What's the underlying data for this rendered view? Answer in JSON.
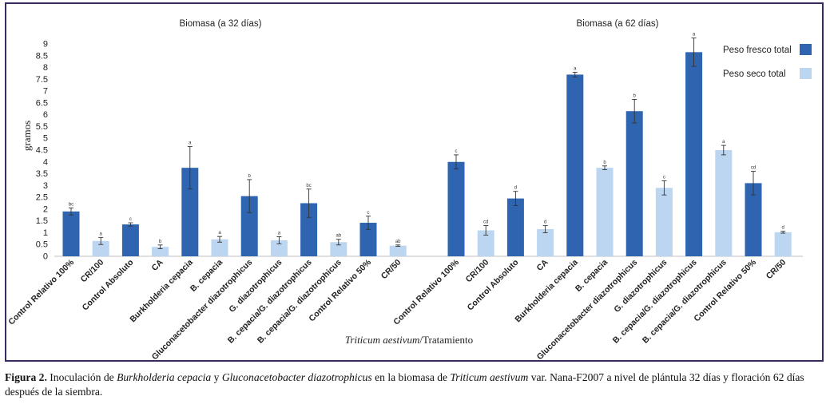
{
  "chart_data": {
    "type": "bar",
    "panels": [
      {
        "title": "Biomasa (a 32 días)",
        "categories": [
          "Control Relativo 100%",
          "CR/100",
          "Control Absoluto",
          "CA",
          "Burkholderia cepacia",
          "B. cepacia",
          "Gluconacetobacter diazotrophicus",
          "G. diazotrophicus",
          "B. cepacia/G. diazotrophicus",
          "B. cepacia/G. diazotrophicus",
          "Control Relativo 50%",
          "CR/50"
        ],
        "values": [
          1.9,
          0.65,
          1.35,
          0.4,
          3.75,
          0.72,
          2.55,
          0.68,
          2.25,
          0.6,
          1.42,
          0.45
        ],
        "errors": [
          0.15,
          0.15,
          0.07,
          0.08,
          0.9,
          0.12,
          0.7,
          0.15,
          0.6,
          0.12,
          0.28,
          0.03
        ],
        "series": [
          "Peso fresco total",
          "Peso seco total",
          "Peso fresco total",
          "Peso seco total",
          "Peso fresco total",
          "Peso seco total",
          "Peso fresco total",
          "Peso seco total",
          "Peso fresco total",
          "Peso seco total",
          "Peso fresco total",
          "Peso seco total"
        ],
        "letters": [
          "bc",
          "a",
          "c",
          "b",
          "a",
          "a",
          "b",
          "a",
          "bc",
          "ab",
          "c",
          "ab"
        ]
      },
      {
        "title": "Biomasa (a 62 días)",
        "categories": [
          "Control Relativo 100%",
          "CR/100",
          "Control Absoluto",
          "CA",
          "Burkholderia cepacia",
          "B. cepacia",
          "Gluconacetobacter diazotrophicus",
          "G. diazotrophicus",
          "B. cepacia/G. diazotrophicus",
          "B. cepacia/G. diazotrophicus",
          "Control Relativo 50%",
          "CR/50"
        ],
        "values": [
          4.0,
          1.1,
          2.45,
          1.15,
          7.7,
          3.75,
          6.15,
          2.9,
          8.65,
          4.5,
          3.1,
          1.02
        ],
        "errors": [
          0.3,
          0.2,
          0.3,
          0.15,
          0.1,
          0.08,
          0.5,
          0.3,
          0.6,
          0.2,
          0.5,
          0.04
        ],
        "series": [
          "Peso fresco total",
          "Peso seco total",
          "Peso fresco total",
          "Peso seco total",
          "Peso fresco total",
          "Peso seco total",
          "Peso fresco total",
          "Peso seco total",
          "Peso fresco total",
          "Peso seco total",
          "Peso fresco total",
          "Peso seco total"
        ],
        "letters": [
          "c",
          "cd",
          "d",
          "d",
          "a",
          "b",
          "b",
          "c",
          "a",
          "a",
          "cd",
          "d"
        ]
      }
    ],
    "legend": [
      {
        "name": "Peso fresco total",
        "color": "#2e64b0"
      },
      {
        "name": "Peso seco total",
        "color": "#bcd5f1"
      }
    ],
    "legend_position": "top-right",
    "ylabel": "gramos",
    "xlabel_italic": "Triticum aestivum",
    "xlabel_rest": "/Tratamiento",
    "ylim": [
      0,
      9
    ],
    "yticks": [
      "0",
      "0.5",
      "1",
      "1.5",
      "2",
      "2.5",
      "3",
      "3.5",
      "4",
      "4.5",
      "5",
      "5.5",
      "6",
      "6.5",
      "7",
      "7.5",
      "8",
      "8.5",
      "9"
    ],
    "grid": false
  },
  "caption": {
    "lead": "Figura 2.",
    "t1": " Inoculación de ",
    "i1": "Burkholderia cepacia",
    "t2": " y ",
    "i2": "Gluconacetobacter diazotrophicus",
    "t3": " en la biomasa de ",
    "i3": "Triticum aestivum",
    "t4": " var. Nana-F2007 a nivel de plántula 32 días y floración 62 días después de la siembra."
  },
  "colors": {
    "fresh": "#2e64b0",
    "dry": "#bcd5f1",
    "frame": "#3b2a5e"
  }
}
